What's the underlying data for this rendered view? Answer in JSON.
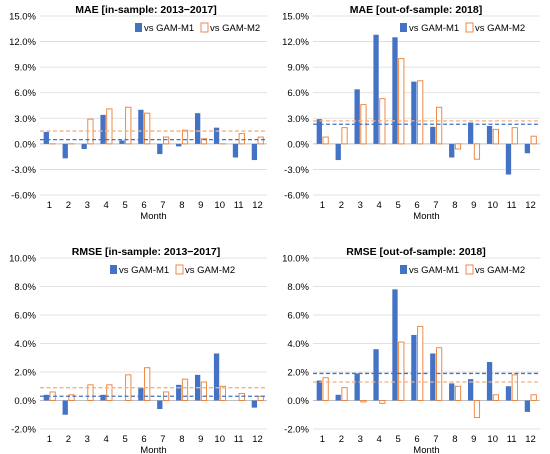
{
  "colors": {
    "m1_fill": "#4472c4",
    "m2_fill": "#ffffff",
    "m2_stroke": "#ed7d31",
    "m1_avg_line": "#4472c4",
    "m2_avg_line": "#f4b183",
    "grid": "#d9d9d9",
    "zero_line": "#bfbfbf",
    "text": "#000000"
  },
  "chart_data": [
    {
      "type": "bar",
      "title_bold": "MAE",
      "title_rest": " [in-sample: 2013−2017]",
      "xlabel": "Month",
      "ylabel": "",
      "categories": [
        "1",
        "2",
        "3",
        "4",
        "5",
        "6",
        "7",
        "8",
        "9",
        "10",
        "11",
        "12"
      ],
      "ylim": [
        -6,
        15
      ],
      "yticks": [
        -6,
        -3,
        0,
        3,
        6,
        9,
        12,
        15
      ],
      "ytick_labels": [
        "-6.0%",
        "-3.0%",
        "0.0%",
        "3.0%",
        "6.0%",
        "9.0%",
        "12.0%",
        "15.0%"
      ],
      "legend_position": "top-right",
      "grid": true,
      "series": [
        {
          "name": "vs GAM-M1",
          "values": [
            1.4,
            -1.7,
            -0.6,
            3.4,
            0.4,
            4.0,
            -1.2,
            -0.3,
            3.6,
            1.9,
            -1.6,
            -1.9
          ],
          "avg": 0.5
        },
        {
          "name": "vs GAM-M2",
          "values": [
            0.0,
            0.0,
            2.9,
            4.1,
            4.3,
            3.6,
            0.8,
            1.6,
            0.6,
            0.0,
            1.2,
            0.8
          ],
          "avg": 1.5
        }
      ]
    },
    {
      "type": "bar",
      "title_bold": "MAE",
      "title_rest": " [out-of-sample: 2018]",
      "xlabel": "Month",
      "ylabel": "",
      "categories": [
        "1",
        "2",
        "3",
        "4",
        "5",
        "6",
        "7",
        "8",
        "9",
        "10",
        "11",
        "12"
      ],
      "ylim": [
        -6,
        15
      ],
      "yticks": [
        -6,
        -3,
        0,
        3,
        6,
        9,
        12,
        15
      ],
      "ytick_labels": [
        "-6.0%",
        "-3.0%",
        "0.0%",
        "3.0%",
        "6.0%",
        "9.0%",
        "12.0%",
        "15.0%"
      ],
      "legend_position": "top-right",
      "grid": true,
      "series": [
        {
          "name": "vs GAM-M1",
          "values": [
            2.9,
            -1.9,
            6.4,
            12.8,
            12.5,
            7.3,
            2.0,
            -1.6,
            2.5,
            2.1,
            -3.6,
            -1.1
          ],
          "avg": 2.3
        },
        {
          "name": "vs GAM-M2",
          "values": [
            0.8,
            1.9,
            4.6,
            5.3,
            10.0,
            7.4,
            4.3,
            -0.6,
            -1.8,
            1.7,
            1.9,
            0.9
          ],
          "avg": 2.7
        }
      ]
    },
    {
      "type": "bar",
      "title_bold": "RMSE",
      "title_rest": " [in-sample: 2013−2017]",
      "xlabel": "Month",
      "ylabel": "",
      "categories": [
        "1",
        "2",
        "3",
        "4",
        "5",
        "6",
        "7",
        "8",
        "9",
        "10",
        "11",
        "12"
      ],
      "ylim": [
        -2,
        10
      ],
      "yticks": [
        -2,
        0,
        2,
        4,
        6,
        8,
        10
      ],
      "ytick_labels": [
        "-2.0%",
        "0.0%",
        "2.0%",
        "4.0%",
        "6.0%",
        "8.0%",
        "10.0%"
      ],
      "legend_position": "top-right",
      "grid": true,
      "series": [
        {
          "name": "vs GAM-M1",
          "values": [
            0.4,
            -1.0,
            0.0,
            0.4,
            0.0,
            0.9,
            -0.6,
            1.1,
            1.8,
            3.3,
            0.0,
            -0.5
          ],
          "avg": 0.3
        },
        {
          "name": "vs GAM-M2",
          "values": [
            0.6,
            0.4,
            1.1,
            1.1,
            1.8,
            2.3,
            0.6,
            1.5,
            1.3,
            1.0,
            0.5,
            0.3
          ],
          "avg": 0.9
        }
      ]
    },
    {
      "type": "bar",
      "title_bold": "RMSE",
      "title_rest": " [out-of-sample: 2018]",
      "xlabel": "Month",
      "ylabel": "",
      "categories": [
        "1",
        "2",
        "3",
        "4",
        "5",
        "6",
        "7",
        "8",
        "9",
        "10",
        "11",
        "12"
      ],
      "ylim": [
        -2,
        10
      ],
      "yticks": [
        -2,
        0,
        2,
        4,
        6,
        8,
        10
      ],
      "ytick_labels": [
        "-2.0%",
        "0.0%",
        "2.0%",
        "4.0%",
        "6.0%",
        "8.0%",
        "10.0%"
      ],
      "legend_position": "top-right",
      "grid": true,
      "series": [
        {
          "name": "vs GAM-M1",
          "values": [
            1.4,
            0.4,
            1.9,
            3.6,
            7.8,
            4.6,
            3.3,
            1.2,
            1.5,
            2.7,
            1.0,
            -0.8
          ],
          "avg": 1.9
        },
        {
          "name": "vs GAM-M2",
          "values": [
            1.6,
            0.9,
            -0.1,
            -0.2,
            4.1,
            5.2,
            3.7,
            1.0,
            -1.2,
            0.4,
            1.8,
            0.4
          ],
          "avg": 1.3
        }
      ]
    }
  ]
}
